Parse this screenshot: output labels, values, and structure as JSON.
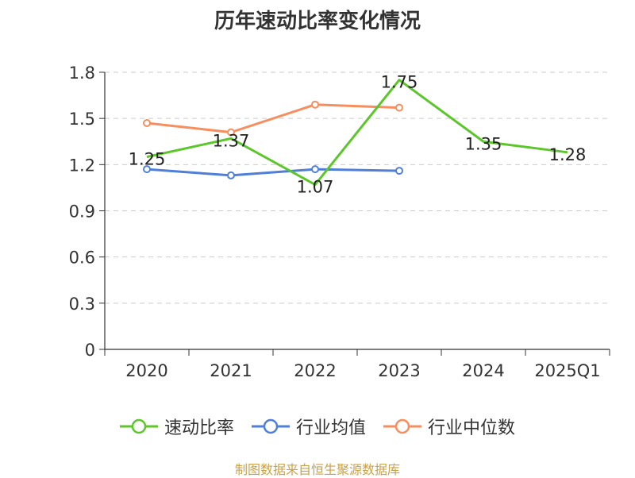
{
  "chart_data": {
    "type": "line",
    "title": "历年速动比率变化情况",
    "categories": [
      "2020",
      "2021",
      "2022",
      "2023",
      "2024",
      "2025Q1"
    ],
    "y_ticks": [
      "0",
      "0.3",
      "0.6",
      "0.9",
      "1.2",
      "1.5",
      "1.8"
    ],
    "ylim": [
      0,
      1.8
    ],
    "grid": "horizontal dashed",
    "legend_position": "bottom",
    "series": [
      {
        "name": "速动比率",
        "color": "#5cc62b",
        "values": [
          1.25,
          1.37,
          1.07,
          1.75,
          1.35,
          1.28
        ],
        "labels": [
          "1.25",
          "1.37",
          "1.07",
          "1.75",
          "1.35",
          "1.28"
        ]
      },
      {
        "name": "行业均值",
        "color": "#4f7fd9",
        "values": [
          1.17,
          1.13,
          1.17,
          1.16,
          null,
          null
        ]
      },
      {
        "name": "行业中位数",
        "color": "#f78e5e",
        "values": [
          1.47,
          1.41,
          1.59,
          1.57,
          null,
          null
        ]
      }
    ]
  },
  "footer": {
    "source": "制图数据来自恒生聚源数据库"
  }
}
